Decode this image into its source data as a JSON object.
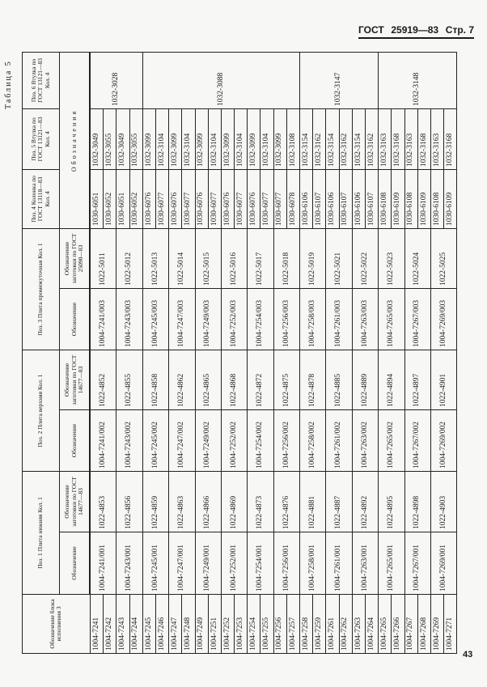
{
  "page_header": {
    "standard": "ГОСТ",
    "number": "25919—83",
    "page": "Стр. 7"
  },
  "table_caption": "Таблица 5",
  "page_number": "43",
  "headers": {
    "block": "Обозначение блока исполнения 3",
    "pos1": "Поз. 1 Плита нижняя Кол. 1",
    "pos2": "Поз. 2 Плита верхняя Кол. 1",
    "pos3": "Поз. 3 Плита промежуточная Кол. 1",
    "pos4": "Поз. 4 Колонка по ГОСТ 13118—83 Кол. 4",
    "pos5": "Поз. 5 Втулка по ГОСТ 13121—83 Кол. 4",
    "pos6": "Поз. 6 Втулка по ГОСТ 13121—83 Кол. 4",
    "designation": "Обозначение",
    "blank_14677": "Обозначение заготовки по ГОСТ 14677—83",
    "blank_25090": "Обозначение заготовки по ГОСТ 25090—83",
    "designations": "Обозначения"
  },
  "rows": [
    {
      "block": "1004-7241",
      "p4": "1030-6051",
      "p5": "1032-3049"
    },
    {
      "block": "1004-7242",
      "p4": "1030-6052",
      "p5": "1032-3055"
    },
    {
      "block": "1004-7243",
      "p4": "1030-6051",
      "p5": "1032-3049"
    },
    {
      "block": "1004-7244",
      "p4": "1030-6052",
      "p5": "1032-3055"
    },
    {
      "block": "1004-7245",
      "p4": "1030-6076",
      "p5": "1032-3099"
    },
    {
      "block": "1004-7246",
      "p4": "1030-6077",
      "p5": "1032-3104"
    },
    {
      "block": "1004-7247",
      "p4": "1030-6076",
      "p5": "1032-3099"
    },
    {
      "block": "1004-7248",
      "p4": "1030-6077",
      "p5": "1032-3104"
    },
    {
      "block": "1004-7249",
      "p4": "1030-6076",
      "p5": "1032-3099"
    },
    {
      "block": "1004-7251",
      "p4": "1030-6077",
      "p5": "1032-3104"
    },
    {
      "block": "1004-7252",
      "p4": "1030-6076",
      "p5": "1032-3099"
    },
    {
      "block": "1004-7253",
      "p4": "1030-6077",
      "p5": "1032-3104"
    },
    {
      "block": "1004-7254",
      "p4": "1030-6076",
      "p5": "1032-3099"
    },
    {
      "block": "1004-7255",
      "p4": "1030-6077",
      "p5": "1032-3104"
    },
    {
      "block": "1004-7256",
      "p4": "1030-6077",
      "p5": "1032-3099"
    },
    {
      "block": "1004-7257",
      "p4": "1030-6078",
      "p5": "1032-3108"
    },
    {
      "block": "1004-7258",
      "p4": "1030-6106",
      "p5": "1032-3154"
    },
    {
      "block": "1004-7259",
      "p4": "1030-6107",
      "p5": "1032-3162"
    },
    {
      "block": "1004-7261",
      "p4": "1030-6106",
      "p5": "1032-3154"
    },
    {
      "block": "1004-7262",
      "p4": "1030-6107",
      "p5": "1032-3162"
    },
    {
      "block": "1004-7263",
      "p4": "1030-6106",
      "p5": "1032-3154"
    },
    {
      "block": "1004-7264",
      "p4": "1030-6107",
      "p5": "1032-3162"
    },
    {
      "block": "1004-7265",
      "p4": "1030-6108",
      "p5": "1032-3163"
    },
    {
      "block": "1004-7266",
      "p4": "1030-6109",
      "p5": "1032-3168"
    },
    {
      "block": "1004-7267",
      "p4": "1030-6108",
      "p5": "1032-3163"
    },
    {
      "block": "1004-7268",
      "p4": "1030-6109",
      "p5": "1032-3168"
    },
    {
      "block": "1004-7269",
      "p4": "1030-6108",
      "p5": "1032-3163"
    },
    {
      "block": "1004-7271",
      "p4": "1030-6109",
      "p5": "1032-3168"
    }
  ],
  "groups": [
    {
      "p1": "1004-7241/001",
      "p1b": "1022-4853",
      "p2": "1004-7241/002",
      "p2b": "1022-4852",
      "p3": "1004-7241/003",
      "p3b": "1022-5011"
    },
    {
      "p1": "1004-7243/001",
      "p1b": "1022-4856",
      "p2": "1004-7243/002",
      "p2b": "1022-4855",
      "p3": "1004-7243/003",
      "p3b": "1022-5012"
    },
    {
      "p1": "1004-7245/001",
      "p1b": "1022-4859",
      "p2": "1004-7245/002",
      "p2b": "1022-4858",
      "p3": "1004-7245/003",
      "p3b": "1022-5013"
    },
    {
      "p1": "1004-7247/001",
      "p1b": "1022-4863",
      "p2": "1004-7247/002",
      "p2b": "1022-4862",
      "p3": "1004-7247/003",
      "p3b": "1022-5014"
    },
    {
      "p1": "1004-7249/001",
      "p1b": "1022-4866",
      "p2": "1004-7249/002",
      "p2b": "1022-4865",
      "p3": "1004-7249/003",
      "p3b": "1022-5015"
    },
    {
      "p1": "1004-7252/001",
      "p1b": "1022-4869",
      "p2": "1004-7252/002",
      "p2b": "1022-4868",
      "p3": "1004-7252/003",
      "p3b": "1022-5016"
    },
    {
      "p1": "1004-7254/001",
      "p1b": "1022-4873",
      "p2": "1004-7254/002",
      "p2b": "1022-4872",
      "p3": "1004-7254/003",
      "p3b": "1022-5017"
    },
    {
      "p1": "1004-7256/001",
      "p1b": "1022-4876",
      "p2": "1004-7256/002",
      "p2b": "1022-4875",
      "p3": "1004-7256/003",
      "p3b": "1022-5018"
    },
    {
      "p1": "1004-7258/001",
      "p1b": "1022-4881",
      "p2": "1004-7258/002",
      "p2b": "1022-4878",
      "p3": "1004-7258/003",
      "p3b": "1022-5019"
    },
    {
      "p1": "1004-7261/001",
      "p1b": "1022-4887",
      "p2": "1004-7261/002",
      "p2b": "1022-4885",
      "p3": "1004-7261/003",
      "p3b": "1022-5021"
    },
    {
      "p1": "1004-7263/001",
      "p1b": "1022-4892",
      "p2": "1004-7263/002",
      "p2b": "1022-4889",
      "p3": "1004-7263/003",
      "p3b": "1022-5022"
    },
    {
      "p1": "1004-7265/001",
      "p1b": "1022-4895",
      "p2": "1004-7265/002",
      "p2b": "1022-4894",
      "p3": "1004-7265/003",
      "p3b": "1022-5023"
    },
    {
      "p1": "1004-7267/001",
      "p1b": "1022-4898",
      "p2": "1004-7267/002",
      "p2b": "1022-4897",
      "p3": "1004-7267/003",
      "p3b": "1022-5024"
    },
    {
      "p1": "1004-7269/001",
      "p1b": "1022-4903",
      "p2": "1004-7269/002",
      "p2b": "1022-4901",
      "p3": "1004-7269/003",
      "p3b": "1022-5025"
    }
  ],
  "p6_spans": [
    {
      "value": "1032-3028",
      "rows": 4
    },
    {
      "value": "1032-3088",
      "rows": 12
    },
    {
      "value": "1032-3147",
      "rows": 6
    },
    {
      "value": "1032-3148",
      "rows": 6
    }
  ]
}
